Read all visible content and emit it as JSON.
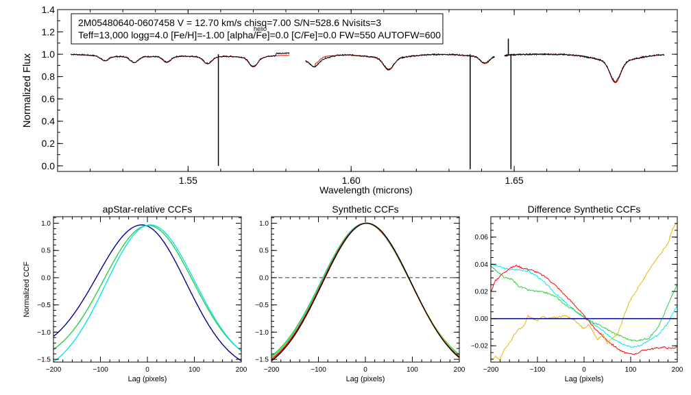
{
  "chart_data": [
    {
      "id": "spectrum",
      "type": "line",
      "title": "",
      "xlabel": "Wavelength (microns)",
      "ylabel": "Normalized Flux",
      "xlim": [
        1.51,
        1.7
      ],
      "ylim": [
        -0.05,
        1.4
      ],
      "xticks": [
        1.55,
        1.6,
        1.65
      ],
      "xtick_labels": [
        "1.55",
        "1.60",
        "1.65"
      ],
      "yticks": [
        0.0,
        0.2,
        0.4,
        0.6,
        0.8,
        1.0,
        1.2,
        1.4
      ],
      "ytick_labels": [
        "0.0",
        "0.2",
        "0.4",
        "0.6",
        "0.8",
        "1.0",
        "1.2",
        "1.4"
      ],
      "info_line1": "2M05480640-0607458  V = 12.70 km/s  chisq=7.00  S/N=528.6  Nvisits=3",
      "info_line1_sub": "helio",
      "info_line2": "Teff=13,000 logg=4.0 [Fe/H]=-1.00 [alpha/Fe]=0.0 [C/Fe]=0.0 FW=550 AUTOFW=600",
      "chips": [
        [
          1.514,
          1.581
        ],
        [
          1.586,
          1.644
        ],
        [
          1.647,
          1.696
        ]
      ],
      "absorption_lines": [
        {
          "center": 1.5245,
          "depth": 0.04,
          "width": 0.0012
        },
        {
          "center": 1.5335,
          "depth": 0.05,
          "width": 0.0012
        },
        {
          "center": 1.5435,
          "depth": 0.05,
          "width": 0.0012
        },
        {
          "center": 1.556,
          "depth": 0.06,
          "width": 0.0013
        },
        {
          "center": 1.57,
          "depth": 0.08,
          "width": 0.0013
        },
        {
          "center": 1.5888,
          "depth": 0.06,
          "width": 0.0013
        },
        {
          "center": 1.6115,
          "depth": 0.1,
          "width": 0.0015
        },
        {
          "center": 1.641,
          "depth": 0.06,
          "width": 0.0013
        },
        {
          "center": 1.681,
          "depth": 0.18,
          "width": 0.0016
        }
      ],
      "spikes": [
        {
          "x": 1.5593,
          "y": 0.0
        },
        {
          "x": 1.6365,
          "y": -0.03
        },
        {
          "x": 1.649,
          "y": -0.03
        },
        {
          "x": 1.6482,
          "y": 1.14
        }
      ],
      "series": [
        {
          "name": "observed",
          "color": "#000000"
        },
        {
          "name": "model",
          "color": "#ff0000"
        }
      ]
    },
    {
      "id": "ccf1",
      "type": "line",
      "title": "apStar-relative CCFs",
      "xlabel": "Lag (pixels)",
      "ylabel": "Normalized CCF",
      "xlim": [
        -200,
        200
      ],
      "ylim": [
        -1.55,
        1.12
      ],
      "xticks": [
        -200,
        -100,
        0,
        100,
        200
      ],
      "xtick_labels": [
        "−200",
        "−100",
        "0",
        "100",
        "200"
      ],
      "yticks": [
        -1.5,
        -1.0,
        -0.5,
        0.0,
        0.5,
        1.0
      ],
      "ytick_labels": [
        "−1.5",
        "−1.0",
        "−0.5",
        "0.0",
        "0.5",
        "1.0"
      ],
      "series": [
        {
          "name": "visit1",
          "color": "#00008b",
          "shift": -12,
          "peak": 0.97,
          "endL": -1.05,
          "endR": -1.35
        },
        {
          "name": "visit2",
          "color": "#2ecc40",
          "shift": 2,
          "peak": 0.96,
          "endL": -1.2,
          "endR": -1.25
        },
        {
          "name": "visit3",
          "color": "#00e5ee",
          "shift": 6,
          "peak": 0.97,
          "endL": -1.4,
          "endR": -1.28
        }
      ]
    },
    {
      "id": "ccf2",
      "type": "line",
      "title": "Synthetic CCFs",
      "xlabel": "Lag (pixels)",
      "ylabel": "",
      "xlim": [
        -200,
        200
      ],
      "ylim": [
        -1.55,
        1.12
      ],
      "xticks": [
        -200,
        -100,
        0,
        100,
        200
      ],
      "xtick_labels": [
        "−200",
        "−100",
        "0",
        "100",
        "200"
      ],
      "yticks": [
        -1.5,
        -1.0,
        -0.5,
        0.0,
        0.5,
        1.0
      ],
      "ytick_labels": [
        "−1.5",
        "−1.0",
        "−0.5",
        "0.0",
        "0.5",
        "1.0"
      ],
      "zero_line": 0.0,
      "series": [
        {
          "name": "green",
          "color": "#2ecc40",
          "shift": 0,
          "peak": 1.0,
          "endL": -1.33,
          "endR": -1.3
        },
        {
          "name": "cyan",
          "color": "#00e5ee",
          "shift": 1,
          "peak": 1.0,
          "endL": -1.35,
          "endR": -1.32
        },
        {
          "name": "gold",
          "color": "#e6b800",
          "shift": 2,
          "peak": 1.0,
          "endL": -1.36,
          "endR": -1.34
        },
        {
          "name": "red",
          "color": "#ff0000",
          "shift": 2,
          "peak": 1.0,
          "endL": -1.38,
          "endR": -1.36
        },
        {
          "name": "black",
          "color": "#000000",
          "shift": 3,
          "peak": 1.0,
          "endL": -1.4,
          "endR": -1.38
        }
      ]
    },
    {
      "id": "ccf3",
      "type": "line",
      "title": "Difference Synthetic CCFs",
      "xlabel": "Lag (pixels)",
      "ylabel": "",
      "xlim": [
        -200,
        200
      ],
      "ylim": [
        -0.032,
        0.075
      ],
      "xticks": [
        -200,
        -100,
        0,
        100,
        200
      ],
      "xtick_labels": [
        "−200",
        "−100",
        "0",
        "100",
        "200"
      ],
      "yticks": [
        -0.02,
        0.0,
        0.02,
        0.04,
        0.06
      ],
      "ytick_labels": [
        "−0.02",
        "0.00",
        "0.02",
        "0.04",
        "0.06"
      ],
      "series": [
        {
          "name": "cyan",
          "color": "#00e5ee",
          "points": [
            [
              -200,
              0.04
            ],
            [
              -180,
              0.038
            ],
            [
              -160,
              0.036
            ],
            [
              -140,
              0.036
            ],
            [
              -120,
              0.035
            ],
            [
              -100,
              0.031
            ],
            [
              -80,
              0.025
            ],
            [
              -60,
              0.018
            ],
            [
              -40,
              0.012
            ],
            [
              -20,
              0.006
            ],
            [
              0,
              0.001
            ],
            [
              20,
              -0.004
            ],
            [
              40,
              -0.009
            ],
            [
              60,
              -0.014
            ],
            [
              80,
              -0.018
            ],
            [
              100,
              -0.021
            ],
            [
              120,
              -0.02
            ],
            [
              140,
              -0.016
            ],
            [
              160,
              -0.012
            ],
            [
              180,
              -0.003
            ],
            [
              200,
              0.01
            ]
          ]
        },
        {
          "name": "red",
          "color": "#ff0000",
          "points": [
            [
              -200,
              0.02
            ],
            [
              -190,
              0.028
            ],
            [
              -175,
              0.033
            ],
            [
              -160,
              0.037
            ],
            [
              -145,
              0.039
            ],
            [
              -130,
              0.037
            ],
            [
              -115,
              0.036
            ],
            [
              -100,
              0.034
            ],
            [
              -80,
              0.03
            ],
            [
              -60,
              0.024
            ],
            [
              -40,
              0.017
            ],
            [
              -20,
              0.01
            ],
            [
              0,
              0.002
            ],
            [
              20,
              -0.006
            ],
            [
              40,
              -0.013
            ],
            [
              60,
              -0.019
            ],
            [
              80,
              -0.024
            ],
            [
              95,
              -0.026
            ],
            [
              110,
              -0.026
            ],
            [
              130,
              -0.023
            ],
            [
              150,
              -0.022
            ],
            [
              170,
              -0.021
            ],
            [
              185,
              -0.022
            ],
            [
              200,
              -0.021
            ]
          ]
        },
        {
          "name": "green",
          "color": "#2ecc40",
          "points": [
            [
              -200,
              0.039
            ],
            [
              -185,
              0.034
            ],
            [
              -170,
              0.03
            ],
            [
              -155,
              0.029
            ],
            [
              -140,
              0.024
            ],
            [
              -120,
              0.021
            ],
            [
              -100,
              0.02
            ],
            [
              -80,
              0.019
            ],
            [
              -60,
              0.016
            ],
            [
              -40,
              0.01
            ],
            [
              -20,
              0.006
            ],
            [
              0,
              0.001
            ],
            [
              20,
              -0.003
            ],
            [
              40,
              -0.006
            ],
            [
              60,
              -0.01
            ],
            [
              80,
              -0.013
            ],
            [
              100,
              -0.016
            ],
            [
              120,
              -0.016
            ],
            [
              140,
              -0.014
            ],
            [
              160,
              -0.006
            ],
            [
              180,
              0.01
            ],
            [
              200,
              0.026
            ]
          ]
        },
        {
          "name": "gold",
          "color": "#e6b800",
          "points": [
            [
              -200,
              -0.03
            ],
            [
              -190,
              -0.028
            ],
            [
              -180,
              -0.03
            ],
            [
              -170,
              -0.022
            ],
            [
              -160,
              -0.018
            ],
            [
              -150,
              -0.012
            ],
            [
              -140,
              -0.008
            ],
            [
              -130,
              -0.006
            ],
            [
              -120,
              0.002
            ],
            [
              -110,
              0.0
            ],
            [
              -100,
              -0.002
            ],
            [
              -90,
              0.002
            ],
            [
              -80,
              0.0
            ],
            [
              -60,
              0.001
            ],
            [
              -40,
              0.002
            ],
            [
              -20,
              -0.001
            ],
            [
              0,
              -0.008
            ],
            [
              10,
              -0.004
            ],
            [
              20,
              -0.01
            ],
            [
              30,
              -0.016
            ],
            [
              40,
              -0.011
            ],
            [
              50,
              -0.018
            ],
            [
              60,
              -0.015
            ],
            [
              70,
              -0.012
            ],
            [
              80,
              -0.004
            ],
            [
              90,
              0.006
            ],
            [
              100,
              0.014
            ],
            [
              120,
              0.025
            ],
            [
              140,
              0.036
            ],
            [
              160,
              0.046
            ],
            [
              180,
              0.055
            ],
            [
              190,
              0.066
            ],
            [
              200,
              0.071
            ]
          ]
        },
        {
          "name": "black",
          "color": "#000000",
          "points": [
            [
              -200,
              0.0
            ],
            [
              200,
              0.0
            ]
          ]
        },
        {
          "name": "navy",
          "color": "#00008b",
          "points": [
            [
              -200,
              0.0
            ],
            [
              200,
              0.0
            ]
          ]
        }
      ]
    }
  ]
}
